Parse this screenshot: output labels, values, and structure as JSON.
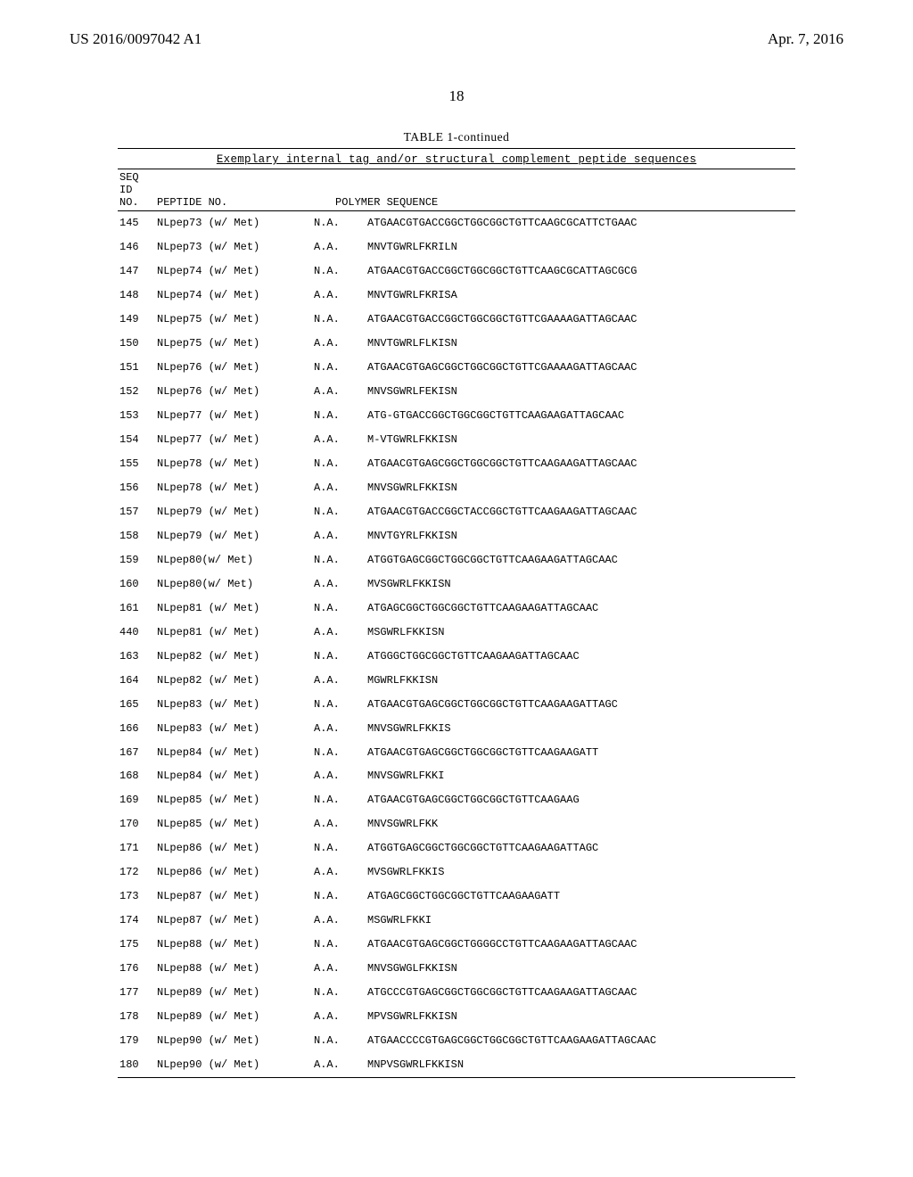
{
  "header": {
    "left": "US 2016/0097042 A1",
    "right": "Apr. 7, 2016"
  },
  "page_number": "18",
  "table": {
    "caption": "TABLE 1-continued",
    "subtitle": "Exemplary internal tag and/or structural complement peptide sequences",
    "col_headers": {
      "seq_line1": "SEQ",
      "seq_line2": "ID",
      "seq_line3": "NO.",
      "peptide": "PEPTIDE NO.",
      "polymer": "POLYMER SEQUENCE"
    },
    "rows": [
      {
        "no": "145",
        "pept": "NLpep73 (w/ Met)",
        "type": "N.A.",
        "seq": "ATGAACGTGACCGGCTGGCGGCTGTTCAAGCGCATTCTGAAC"
      },
      {
        "no": "146",
        "pept": "NLpep73 (w/ Met)",
        "type": "A.A.",
        "seq": "MNVTGWRLFKRILN"
      },
      {
        "no": "147",
        "pept": "NLpep74 (w/ Met)",
        "type": "N.A.",
        "seq": "ATGAACGTGACCGGCTGGCGGCTGTTCAAGCGCATTAGCGCG"
      },
      {
        "no": "148",
        "pept": "NLpep74 (w/ Met)",
        "type": "A.A.",
        "seq": "MNVTGWRLFKRISA"
      },
      {
        "no": "149",
        "pept": "NLpep75 (w/ Met)",
        "type": "N.A.",
        "seq": "ATGAACGTGACCGGCTGGCGGCTGTTCGAAAAGATTAGCAAC"
      },
      {
        "no": "150",
        "pept": "NLpep75 (w/ Met)",
        "type": "A.A.",
        "seq": "MNVTGWRLFLKISN"
      },
      {
        "no": "151",
        "pept": "NLpep76 (w/ Met)",
        "type": "N.A.",
        "seq": "ATGAACGTGAGCGGCTGGCGGCTGTTCGAAAAGATTAGCAAC"
      },
      {
        "no": "152",
        "pept": "NLpep76 (w/ Met)",
        "type": "A.A.",
        "seq": "MNVSGWRLFEKISN"
      },
      {
        "no": "153",
        "pept": "NLpep77 (w/ Met)",
        "type": "N.A.",
        "seq": "ATG-GTGACCGGCTGGCGGCTGTTCAAGAAGATTAGCAAC"
      },
      {
        "no": "154",
        "pept": "NLpep77 (w/ Met)",
        "type": "A.A.",
        "seq": "M-VTGWRLFKKISN"
      },
      {
        "no": "155",
        "pept": "NLpep78 (w/ Met)",
        "type": "N.A.",
        "seq": "ATGAACGTGAGCGGCTGGCGGCTGTTCAAGAAGATTAGCAAC"
      },
      {
        "no": "156",
        "pept": "NLpep78 (w/ Met)",
        "type": "A.A.",
        "seq": "MNVSGWRLFKKISN"
      },
      {
        "no": "157",
        "pept": "NLpep79 (w/ Met)",
        "type": "N.A.",
        "seq": "ATGAACGTGACCGGCTACCGGCTGTTCAAGAAGATTAGCAAC"
      },
      {
        "no": "158",
        "pept": "NLpep79 (w/ Met)",
        "type": "A.A.",
        "seq": "MNVTGYRLFKKISN"
      },
      {
        "no": "159",
        "pept": "NLpep80(w/ Met)",
        "type": "N.A.",
        "seq": "ATGGTGAGCGGCTGGCGGCTGTTCAAGAAGATTAGCAAC"
      },
      {
        "no": "160",
        "pept": "NLpep80(w/ Met)",
        "type": "A.A.",
        "seq": "MVSGWRLFKKISN"
      },
      {
        "no": "161",
        "pept": "NLpep81 (w/ Met)",
        "type": "N.A.",
        "seq": "ATGAGCGGCTGGCGGCTGTTCAAGAAGATTAGCAAC"
      },
      {
        "no": "440",
        "pept": "NLpep81 (w/ Met)",
        "type": "A.A.",
        "seq": "MSGWRLFKKISN"
      },
      {
        "no": "163",
        "pept": "NLpep82 (w/ Met)",
        "type": "N.A.",
        "seq": "ATGGGCTGGCGGCTGTTCAAGAAGATTAGCAAC"
      },
      {
        "no": "164",
        "pept": "NLpep82 (w/ Met)",
        "type": "A.A.",
        "seq": "MGWRLFKKISN"
      },
      {
        "no": "165",
        "pept": "NLpep83 (w/ Met)",
        "type": "N.A.",
        "seq": "ATGAACGTGAGCGGCTGGCGGCTGTTCAAGAAGATTAGC"
      },
      {
        "no": "166",
        "pept": "NLpep83 (w/ Met)",
        "type": "A.A.",
        "seq": "MNVSGWRLFKKIS"
      },
      {
        "no": "167",
        "pept": "NLpep84 (w/ Met)",
        "type": "N.A.",
        "seq": "ATGAACGTGAGCGGCTGGCGGCTGTTCAAGAAGATT"
      },
      {
        "no": "168",
        "pept": "NLpep84 (w/ Met)",
        "type": "A.A.",
        "seq": "MNVSGWRLFKKI"
      },
      {
        "no": "169",
        "pept": "NLpep85 (w/ Met)",
        "type": "N.A.",
        "seq": "ATGAACGTGAGCGGCTGGCGGCTGTTCAAGAAG"
      },
      {
        "no": "170",
        "pept": "NLpep85 (w/ Met)",
        "type": "A.A.",
        "seq": "MNVSGWRLFKK"
      },
      {
        "no": "171",
        "pept": "NLpep86 (w/ Met)",
        "type": "N.A.",
        "seq": "ATGGTGAGCGGCTGGCGGCTGTTCAAGAAGATTAGC"
      },
      {
        "no": "172",
        "pept": "NLpep86 (w/ Met)",
        "type": "A.A.",
        "seq": "MVSGWRLFKKIS"
      },
      {
        "no": "173",
        "pept": "NLpep87 (w/ Met)",
        "type": "N.A.",
        "seq": "ATGAGCGGCTGGCGGCTGTTCAAGAAGATT"
      },
      {
        "no": "174",
        "pept": "NLpep87 (w/ Met)",
        "type": "A.A.",
        "seq": "MSGWRLFKKI"
      },
      {
        "no": "175",
        "pept": "NLpep88 (w/ Met)",
        "type": "N.A.",
        "seq": "ATGAACGTGAGCGGCTGGGGCCTGTTCAAGAAGATTAGCAAC"
      },
      {
        "no": "176",
        "pept": "NLpep88 (w/ Met)",
        "type": "A.A.",
        "seq": "MNVSGWGLFKKISN"
      },
      {
        "no": "177",
        "pept": "NLpep89 (w/ Met)",
        "type": "N.A.",
        "seq": "ATGCCCGTGAGCGGCTGGCGGCTGTTCAAGAAGATTAGCAAC"
      },
      {
        "no": "178",
        "pept": "NLpep89 (w/ Met)",
        "type": "A.A.",
        "seq": "MPVSGWRLFKKISN"
      },
      {
        "no": "179",
        "pept": "NLpep90 (w/ Met)",
        "type": "N.A.",
        "seq": "ATGAACCCCGTGAGCGGCTGGCGGCTGTTCAAGAAGATTAGCAAC"
      },
      {
        "no": "180",
        "pept": "NLpep90 (w/ Met)",
        "type": "A.A.",
        "seq": "MNPVSGWRLFKKISN"
      }
    ]
  }
}
